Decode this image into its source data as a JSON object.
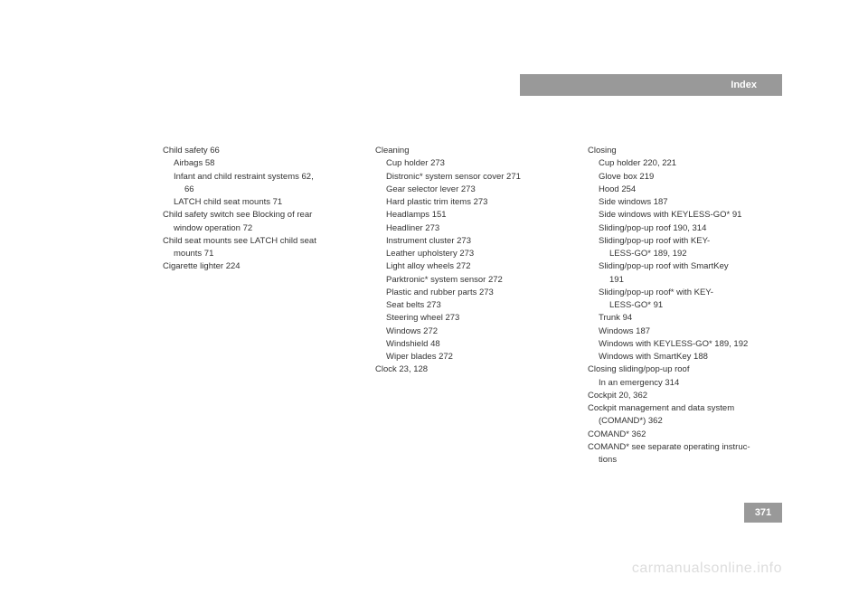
{
  "header": {
    "title": "Index"
  },
  "page_number": "371",
  "watermark": "carmanualsonline.info",
  "colors": {
    "bar_bg": "#999999",
    "bar_text": "#ffffff",
    "body_text": "#333333",
    "watermark": "#dddddd",
    "page_bg": "#ffffff"
  },
  "columns": {
    "col1": [
      {
        "text": "Child safety 66",
        "level": 0
      },
      {
        "text": "Airbags 58",
        "level": 1
      },
      {
        "text": "Infant and child restraint systems 62,",
        "level": 1
      },
      {
        "text": "66",
        "level": 2
      },
      {
        "text": "LATCH child seat mounts 71",
        "level": 1
      },
      {
        "text": "Child safety switch see Blocking of rear",
        "level": 0
      },
      {
        "text": "window operation 72",
        "level": 1
      },
      {
        "text": "Child seat mounts see LATCH child seat",
        "level": 0
      },
      {
        "text": "mounts 71",
        "level": 1
      },
      {
        "text": "Cigarette lighter 224",
        "level": 0
      }
    ],
    "col2": [
      {
        "text": "Cleaning",
        "level": 0
      },
      {
        "text": "Cup holder 273",
        "level": 1
      },
      {
        "text": "Distronic* system sensor cover 271",
        "level": 1
      },
      {
        "text": "Gear selector lever 273",
        "level": 1
      },
      {
        "text": "Hard plastic trim items 273",
        "level": 1
      },
      {
        "text": "Headlamps 151",
        "level": 1
      },
      {
        "text": "Headliner 273",
        "level": 1
      },
      {
        "text": "Instrument cluster 273",
        "level": 1
      },
      {
        "text": "Leather upholstery 273",
        "level": 1
      },
      {
        "text": "Light alloy wheels 272",
        "level": 1
      },
      {
        "text": "Parktronic* system sensor 272",
        "level": 1
      },
      {
        "text": "Plastic and rubber parts 273",
        "level": 1
      },
      {
        "text": "Seat belts 273",
        "level": 1
      },
      {
        "text": "Steering wheel 273",
        "level": 1
      },
      {
        "text": "Windows 272",
        "level": 1
      },
      {
        "text": "Windshield 48",
        "level": 1
      },
      {
        "text": "Wiper blades 272",
        "level": 1
      },
      {
        "text": "Clock 23, 128",
        "level": 0
      }
    ],
    "col3": [
      {
        "text": "Closing",
        "level": 0
      },
      {
        "text": "Cup holder 220, 221",
        "level": 1
      },
      {
        "text": "Glove box 219",
        "level": 1
      },
      {
        "text": "Hood 254",
        "level": 1
      },
      {
        "text": "Side windows 187",
        "level": 1
      },
      {
        "text": "Side windows with KEYLESS-GO* 91",
        "level": 1
      },
      {
        "text": "Sliding/pop-up roof 190, 314",
        "level": 1
      },
      {
        "text": "Sliding/pop-up roof with KEY-",
        "level": 1
      },
      {
        "text": "LESS-GO* 189, 192",
        "level": 2
      },
      {
        "text": "Sliding/pop-up roof with SmartKey",
        "level": 1
      },
      {
        "text": "191",
        "level": 2
      },
      {
        "text": "Sliding/pop-up roof* with KEY-",
        "level": 1
      },
      {
        "text": "LESS-GO* 91",
        "level": 2
      },
      {
        "text": "Trunk 94",
        "level": 1
      },
      {
        "text": "Windows 187",
        "level": 1
      },
      {
        "text": "Windows with KEYLESS-GO* 189, 192",
        "level": 1
      },
      {
        "text": "Windows with SmartKey 188",
        "level": 1
      },
      {
        "text": "Closing sliding/pop-up roof",
        "level": 0
      },
      {
        "text": "In an emergency 314",
        "level": 1
      },
      {
        "text": "Cockpit 20, 362",
        "level": 0
      },
      {
        "text": "Cockpit management and data system",
        "level": 0
      },
      {
        "text": "(COMAND*) 362",
        "level": 1
      },
      {
        "text": "COMAND* 362",
        "level": 0
      },
      {
        "text": "COMAND* see separate operating instruc-",
        "level": 0
      },
      {
        "text": "tions",
        "level": 1
      }
    ]
  }
}
